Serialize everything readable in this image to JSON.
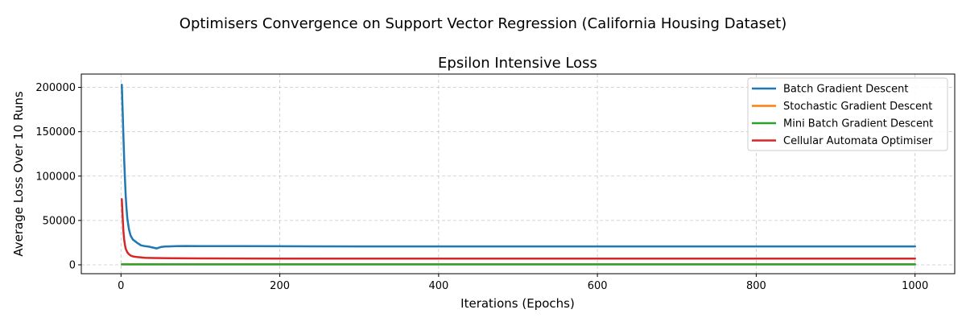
{
  "figure": {
    "suptitle": "Optimisers Convergence on Support Vector Regression (California Housing Dataset)"
  },
  "chart_data": {
    "type": "line",
    "title": "Epsilon Intensive Loss",
    "xlabel": "Iterations (Epochs)",
    "ylabel": "Average Loss Over 10 Runs",
    "xlim": [
      -50,
      1050
    ],
    "ylim": [
      -10000,
      215000
    ],
    "xticks": [
      0,
      200,
      400,
      600,
      800,
      1000
    ],
    "yticks": [
      0,
      50000,
      100000,
      150000,
      200000
    ],
    "xtick_labels": [
      "0",
      "200",
      "400",
      "600",
      "800",
      "1000"
    ],
    "ytick_labels": [
      "0",
      "50000",
      "100000",
      "150000",
      "200000"
    ],
    "grid": true,
    "legend_position": "top-right",
    "series": [
      {
        "name": "Batch Gradient Descent",
        "color": "#1f77b4",
        "x": [
          1,
          2,
          3,
          4,
          5,
          6,
          7,
          8,
          10,
          12,
          15,
          20,
          25,
          30,
          35,
          40,
          45,
          50,
          55,
          60,
          70,
          80,
          100,
          150,
          200,
          300,
          400,
          500,
          600,
          700,
          800,
          900,
          1000
        ],
        "y": [
          203000,
          175000,
          145000,
          118000,
          95000,
          77000,
          63000,
          52000,
          40000,
          33000,
          28500,
          25000,
          22000,
          21000,
          20500,
          19500,
          18500,
          20000,
          20700,
          20800,
          21000,
          21200,
          21100,
          21000,
          20900,
          20800,
          20800,
          20800,
          20800,
          20800,
          20800,
          20800,
          20800
        ]
      },
      {
        "name": "Stochastic Gradient Descent",
        "color": "#ff7f0e",
        "x": [
          1,
          1000
        ],
        "y": [
          500,
          500
        ]
      },
      {
        "name": "Mini Batch Gradient Descent",
        "color": "#2ca02c",
        "x": [
          1,
          1000
        ],
        "y": [
          500,
          500
        ]
      },
      {
        "name": "Cellular Automata Optimiser",
        "color": "#d62728",
        "x": [
          1,
          2,
          3,
          4,
          5,
          6,
          8,
          10,
          12,
          15,
          20,
          30,
          40,
          60,
          100,
          200,
          400,
          600,
          800,
          1000
        ],
        "y": [
          74000,
          55000,
          38000,
          28000,
          22000,
          18000,
          14000,
          12000,
          10500,
          9500,
          8800,
          8000,
          7700,
          7400,
          7200,
          7100,
          7000,
          7000,
          7000,
          7000
        ]
      }
    ]
  }
}
